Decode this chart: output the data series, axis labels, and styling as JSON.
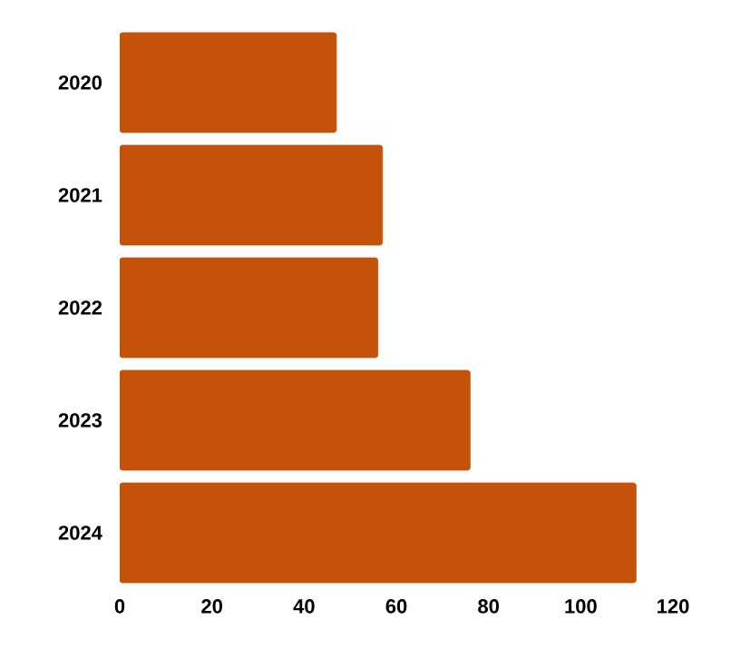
{
  "chart_data": {
    "type": "bar",
    "orientation": "horizontal",
    "categories": [
      "2020",
      "2021",
      "2022",
      "2023",
      "2024"
    ],
    "values": [
      47,
      57,
      56,
      76,
      112
    ],
    "color": "#c4520a",
    "xlim": [
      0,
      120
    ],
    "xticks": [
      0,
      20,
      40,
      60,
      80,
      100,
      120
    ]
  }
}
